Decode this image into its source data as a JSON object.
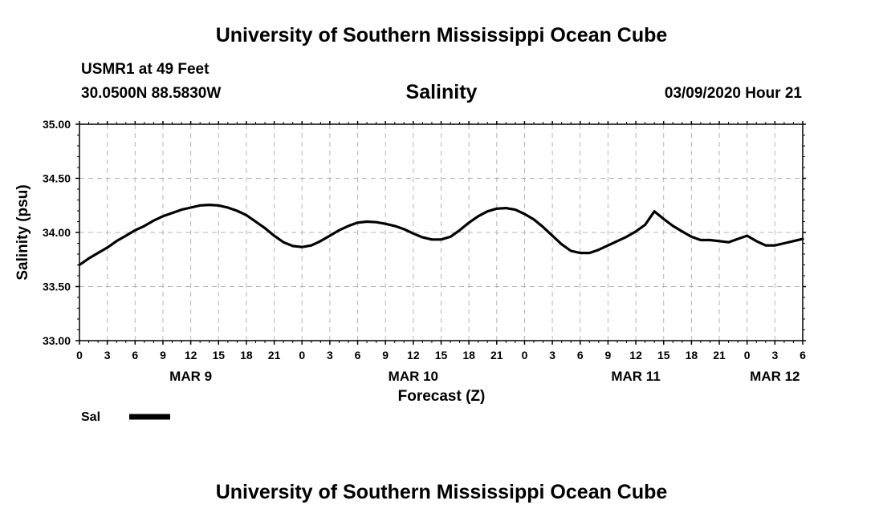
{
  "header": {
    "title_top": "University of Southern Mississippi Ocean Cube",
    "station": "USMR1 at 49 Feet",
    "coords": "30.0500N 88.5830W",
    "timestamp": "03/09/2020 Hour 21",
    "title_bottom": "University of Southern Mississippi Ocean Cube"
  },
  "chart_data": {
    "type": "line",
    "title": "Salinity",
    "xlabel": "Forecast (Z)",
    "ylabel": "Salinity (psu)",
    "ylim": [
      33.0,
      35.0
    ],
    "y_ticks": [
      "33.00",
      "33.50",
      "34.00",
      "34.50",
      "35.00"
    ],
    "xlim": [
      0,
      78
    ],
    "x_ticks": [
      "0",
      "3",
      "6",
      "9",
      "12",
      "15",
      "18",
      "21",
      "0",
      "3",
      "6",
      "9",
      "12",
      "15",
      "18",
      "21",
      "0",
      "3",
      "6",
      "9",
      "12",
      "15",
      "18",
      "21",
      "0",
      "3",
      "6"
    ],
    "date_labels": [
      {
        "label": "MAR 9",
        "hour": 12
      },
      {
        "label": "MAR 10",
        "hour": 36
      },
      {
        "label": "MAR 11",
        "hour": 60
      },
      {
        "label": "MAR 12",
        "hour": 75
      }
    ],
    "grid": true,
    "line_color": "#000000",
    "series": [
      {
        "name": "Sal",
        "x": [
          0,
          1,
          2,
          3,
          4,
          5,
          6,
          7,
          8,
          9,
          10,
          11,
          12,
          13,
          14,
          15,
          16,
          17,
          18,
          19,
          20,
          21,
          22,
          23,
          24,
          25,
          26,
          27,
          28,
          29,
          30,
          31,
          32,
          33,
          34,
          35,
          36,
          37,
          38,
          39,
          40,
          41,
          42,
          43,
          44,
          45,
          46,
          47,
          48,
          49,
          50,
          51,
          52,
          53,
          54,
          55,
          56,
          57,
          58,
          59,
          60,
          61,
          62,
          63,
          64,
          65,
          66,
          67,
          68,
          69,
          70,
          71,
          72,
          73,
          74,
          75,
          76,
          77,
          78
        ],
        "values": [
          33.7,
          33.76,
          33.81,
          33.86,
          33.92,
          33.97,
          34.02,
          34.06,
          34.11,
          34.15,
          34.18,
          34.21,
          34.23,
          34.25,
          34.255,
          34.25,
          34.23,
          34.2,
          34.16,
          34.1,
          34.04,
          33.97,
          33.91,
          33.875,
          33.865,
          33.88,
          33.92,
          33.97,
          34.02,
          34.06,
          34.09,
          34.1,
          34.095,
          34.08,
          34.06,
          34.03,
          33.99,
          33.955,
          33.935,
          33.935,
          33.96,
          34.02,
          34.09,
          34.15,
          34.195,
          34.22,
          34.225,
          34.21,
          34.17,
          34.12,
          34.05,
          33.97,
          33.89,
          33.83,
          33.81,
          33.81,
          33.84,
          33.88,
          33.92,
          33.96,
          34.01,
          34.07,
          34.195,
          34.125,
          34.06,
          34.01,
          33.96,
          33.93,
          33.93,
          33.92,
          33.91,
          33.94,
          33.97,
          33.92,
          33.88,
          33.88,
          33.9,
          33.92,
          33.94
        ]
      }
    ],
    "legend": [
      {
        "label": "Sal",
        "position": "bottom-left"
      }
    ]
  }
}
